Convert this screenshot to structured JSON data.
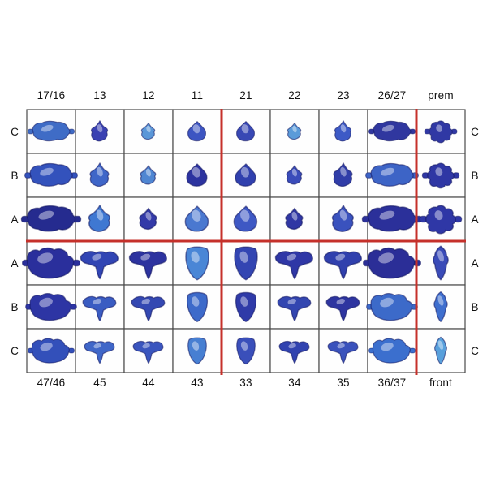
{
  "figure": {
    "title": "tooth-specimen-grid",
    "background": "#ffffff",
    "grid_line_color": "#4a4a4a",
    "divider_color": "#c5302a",
    "text_color": "#111111",
    "highlight_color": "#ffffff",
    "top_labels": [
      "17/16",
      "13",
      "12",
      "11",
      "21",
      "22",
      "23",
      "26/27",
      "prem"
    ],
    "bottom_labels": [
      "47/46",
      "45",
      "44",
      "43",
      "33",
      "34",
      "35",
      "36/37",
      "front"
    ],
    "left_row_labels": [
      "C",
      "B",
      "A",
      "A",
      "B",
      "C"
    ],
    "right_row_labels": [
      "C",
      "B",
      "A",
      "A",
      "B",
      "C"
    ],
    "column_shapes": {
      "occlusal": [
        "molar-occlusal",
        "canine-incisal",
        "lateral-incisal",
        "central-incisal",
        "central-incisal",
        "lateral-incisal",
        "canine-incisal",
        "molar-occlusal",
        "premolar-occlusal"
      ],
      "buccal": [
        "molar-buccal",
        "premolar-buccal",
        "premolar-buccal",
        "canine-buccal",
        "canine-buccal",
        "premolar-buccal",
        "premolar-buccal",
        "molar-buccal",
        "incisor-labial"
      ]
    },
    "rows": [
      {
        "label": "C",
        "section": "occlusal",
        "scale": 0.95,
        "colors": [
          "#3f6cc6",
          "#3a41b2",
          "#5b97d8",
          "#3d55c2",
          "#3848b4",
          "#5b9bd9",
          "#3d5ac6",
          "#30379f",
          "#3038a4"
        ]
      },
      {
        "label": "B",
        "section": "occlusal",
        "scale": 1.08,
        "colors": [
          "#3352bc",
          "#3f66c8",
          "#4f86d2",
          "#2c339f",
          "#3040ae",
          "#3a4cba",
          "#303da8",
          "#3d64c6",
          "#2f37a4"
        ]
      },
      {
        "label": "A",
        "section": "occlusal",
        "scale": 1.22,
        "colors": [
          "#252b8f",
          "#3f78d2",
          "#333aa8",
          "#4a78d0",
          "#3e58c4",
          "#3037a4",
          "#3a52be",
          "#2b309a",
          "#2f37a6"
        ]
      },
      {
        "label": "A",
        "section": "buccal",
        "scale": 1.22,
        "colors": [
          "#2a2f9c",
          "#3145b4",
          "#2d339f",
          "#4a86d6",
          "#3345b2",
          "#2f37a6",
          "#3040ad",
          "#2b2e97",
          "#3a4bb8"
        ]
      },
      {
        "label": "B",
        "section": "buccal",
        "scale": 1.08,
        "colors": [
          "#2d35a4",
          "#3a5cc2",
          "#3448b2",
          "#3d6aca",
          "#2f3aa8",
          "#3346b0",
          "#2e35a0",
          "#3c6ac9",
          "#3f6fce"
        ]
      },
      {
        "label": "C",
        "section": "buccal",
        "scale": 0.98,
        "colors": [
          "#3350ba",
          "#3f66c8",
          "#3a55be",
          "#477fd2",
          "#3a4fba",
          "#3143b0",
          "#3a52bc",
          "#3b6fce",
          "#58a0dc"
        ]
      }
    ],
    "red_dividers": {
      "vertical_after_columns": [
        4,
        8
      ],
      "horizontal_after_row": 3
    }
  }
}
